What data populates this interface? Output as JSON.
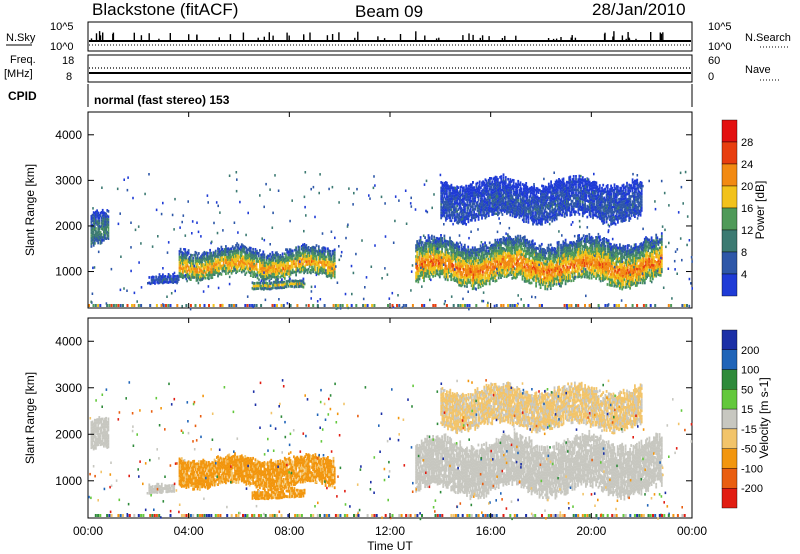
{
  "header": {
    "station": "Blackstone (fitACF)",
    "beam": "Beam 09",
    "date": "28/Jan/2010"
  },
  "strip": {
    "nsky_label": "N.Sky",
    "nsky_top_tick": "10^5",
    "nsky_bottom_tick": "10^0",
    "nsearch_label": "N.Search",
    "nsearch_top_tick": "10^5",
    "nsearch_bottom_tick": "10^0",
    "freq_label": "Freq.",
    "freq_unit": "[MHz]",
    "freq_top_tick": "18",
    "freq_bottom_tick": "8",
    "nave_label": "Nave",
    "nave_top_tick": "60",
    "nave_bottom_tick": "0",
    "cpid_label": "CPID",
    "cpid_value": "normal (fast stereo) 153"
  },
  "colors": {
    "power": [
      "#1f3bd6",
      "#2e57a8",
      "#3c7a72",
      "#4f9a58",
      "#f2c21b",
      "#f28a12",
      "#e83e0f",
      "#e31010"
    ],
    "velocity": [
      "#1b2fa6",
      "#1f64b8",
      "#2e8a3a",
      "#63c83c",
      "#c7c7c0",
      "#f2c46a",
      "#f2960e",
      "#e95e10",
      "#e11d12"
    ],
    "ground_scatter": "#c7c7c0"
  },
  "chart_data": [
    {
      "type": "heatmap",
      "panel": "power",
      "title": "Blackstone (fitACF) Beam 09 28/Jan/2010",
      "xlabel": "Time UT",
      "ylabel": "Slant Range [km]",
      "xlim": [
        0,
        24
      ],
      "ylim": [
        200,
        4500
      ],
      "x_ticks": [
        "00:00",
        "04:00",
        "08:00",
        "12:00",
        "16:00",
        "20:00",
        "00:00"
      ],
      "y_ticks": [
        1000,
        2000,
        3000,
        4000
      ],
      "colorbar": {
        "label": "Power [dB]",
        "ticks": [
          "4",
          "8",
          "12",
          "16",
          "20",
          "24",
          "28"
        ]
      },
      "features": [
        {
          "time_start": 0.1,
          "time_end": 0.8,
          "range_low": 1500,
          "range_high": 2300,
          "level_db": 12
        },
        {
          "time_start": 2.4,
          "time_end": 3.6,
          "range_low": 700,
          "range_high": 900,
          "level_db": 6
        },
        {
          "time_start": 3.6,
          "time_end": 9.8,
          "range_low": 850,
          "range_high": 1500,
          "level_db": 22
        },
        {
          "time_start": 6.5,
          "time_end": 8.6,
          "range_low": 600,
          "range_high": 800,
          "level_db": 18
        },
        {
          "time_start": 13.0,
          "time_end": 22.8,
          "range_low": 700,
          "range_high": 1700,
          "level_db": 24
        },
        {
          "time_start": 14.0,
          "time_end": 22.0,
          "range_low": 2100,
          "range_high": 3000,
          "level_db": 6
        }
      ]
    },
    {
      "type": "heatmap",
      "panel": "velocity",
      "xlabel": "Time UT",
      "ylabel": "Slant Range [km]",
      "xlim": [
        0,
        24
      ],
      "ylim": [
        200,
        4500
      ],
      "x_ticks": [
        "00:00",
        "04:00",
        "08:00",
        "12:00",
        "16:00",
        "20:00",
        "00:00"
      ],
      "y_ticks": [
        1000,
        2000,
        3000,
        4000
      ],
      "colorbar": {
        "label": "Velocity [m s-1]",
        "ticks": [
          "200",
          "100",
          "50",
          "15",
          "-15",
          "-50",
          "-100",
          "-200"
        ]
      },
      "features": [
        {
          "time_start": 0.1,
          "time_end": 0.8,
          "range_low": 1600,
          "range_high": 2300,
          "velocity": 0
        },
        {
          "time_start": 2.4,
          "time_end": 3.4,
          "range_low": 700,
          "range_high": 900,
          "velocity": 0
        },
        {
          "time_start": 3.6,
          "time_end": 9.8,
          "range_low": 850,
          "range_high": 1500,
          "velocity": -60
        },
        {
          "time_start": 6.5,
          "time_end": 8.6,
          "range_low": 600,
          "range_high": 800,
          "velocity": -60
        },
        {
          "time_start": 13.0,
          "time_end": 22.8,
          "range_low": 700,
          "range_high": 1900,
          "velocity": 0
        },
        {
          "time_start": 14.0,
          "time_end": 22.0,
          "range_low": 2100,
          "range_high": 3000,
          "velocity": -20
        }
      ]
    }
  ]
}
